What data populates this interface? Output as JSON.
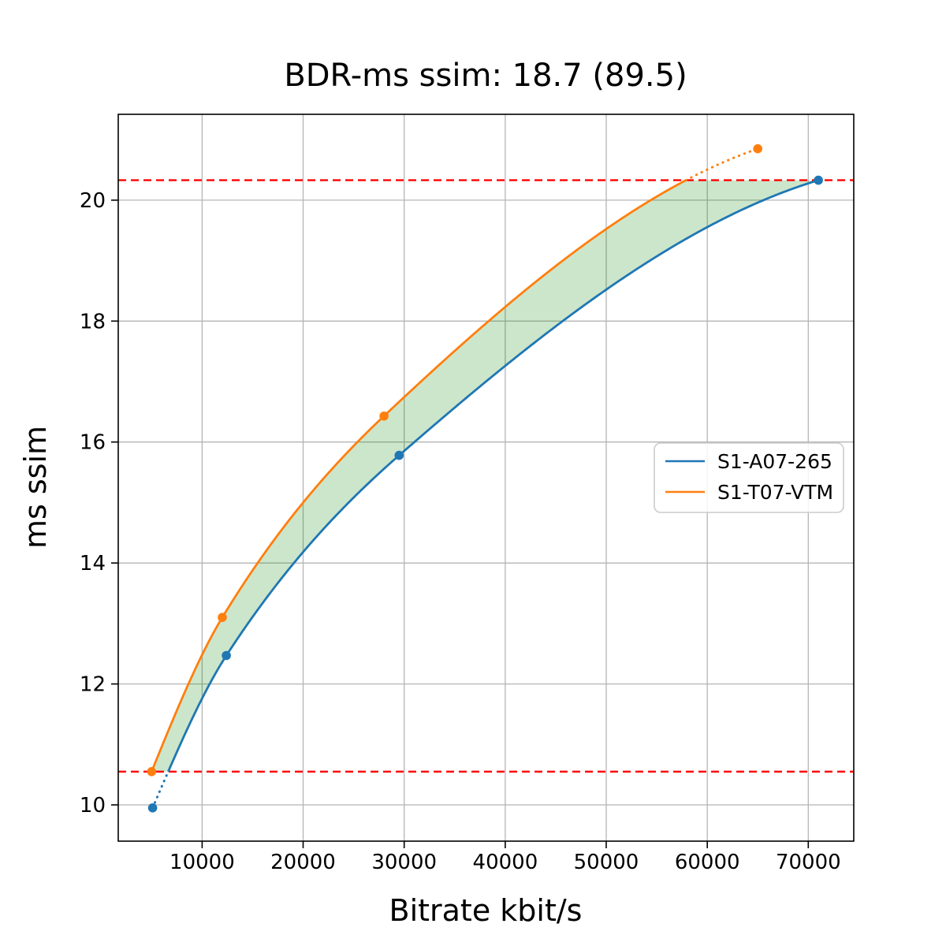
{
  "chart_data": {
    "type": "line",
    "title": "BDR-ms ssim: 18.7 (89.5)",
    "xlabel": "Bitrate kbit/s",
    "ylabel": "ms ssim",
    "xlim": [
      1700,
      74500
    ],
    "ylim": [
      9.4,
      21.42
    ],
    "xticks": [
      10000,
      20000,
      30000,
      40000,
      50000,
      60000,
      70000
    ],
    "xtick_labels": [
      "10000",
      "20000",
      "30000",
      "40000",
      "50000",
      "60000",
      "70000"
    ],
    "yticks": [
      10,
      12,
      14,
      16,
      18,
      20
    ],
    "ytick_labels": [
      "10",
      "12",
      "14",
      "16",
      "18",
      "20"
    ],
    "grid": true,
    "grid_color": "#b5b5b5",
    "legend_position": "center right",
    "series": [
      {
        "name": "S1-A07-265",
        "color": "#1f77b4",
        "points_x": [
          5100,
          12400,
          29500,
          71000
        ],
        "points_y": [
          9.95,
          12.47,
          15.78,
          20.33
        ]
      },
      {
        "name": "S1-T07-VTM",
        "color": "#ff7f0e",
        "points_x": [
          5000,
          12000,
          28000,
          65000
        ],
        "points_y": [
          10.55,
          13.1,
          16.43,
          20.85
        ]
      }
    ],
    "reference_lines": {
      "color": "#ff0000",
      "style": "dashed",
      "values": [
        10.55,
        20.33
      ],
      "meaning": "overlap interval bounds of the two rate-distortion curves"
    },
    "shaded_region": {
      "color": "#008000",
      "alpha": 0.2,
      "between": "area between the two curves inside the overlap interval"
    }
  }
}
